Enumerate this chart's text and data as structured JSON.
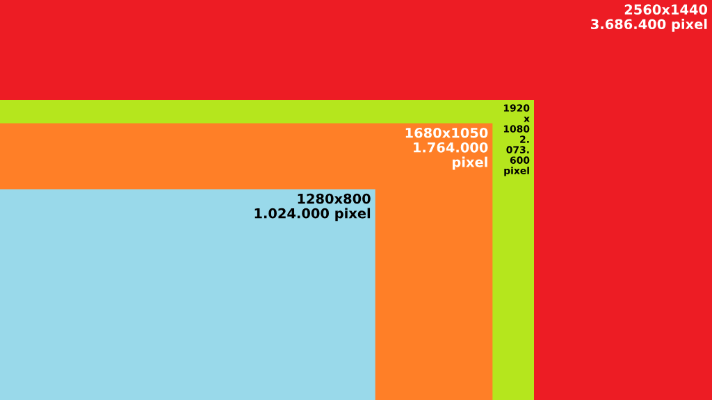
{
  "chart_data": {
    "type": "other",
    "categories": [
      "2560x1440",
      "1920x1080",
      "1680x1050",
      "1280x800"
    ],
    "values": [
      3686400,
      2073600,
      1764000,
      1024000
    ],
    "value_labels": [
      "3.686.400 pixel",
      "2.073.600 pixel",
      "1.764.000 pixel",
      "1.024.000 pixel"
    ],
    "colors": [
      "#ed1c24",
      "#b5e61d",
      "#ff7f27",
      "#99d9ea"
    ]
  }
}
